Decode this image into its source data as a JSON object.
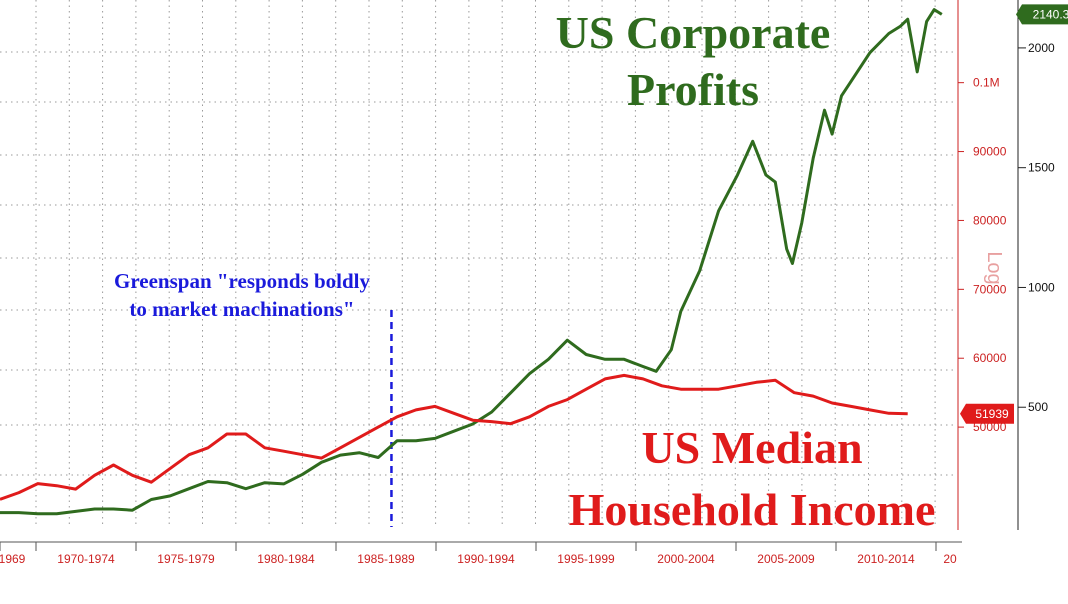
{
  "chart_data": {
    "type": "line",
    "titles": {
      "profits_line1": "US Corporate",
      "profits_line2": "Profits",
      "income_line1": "US Median",
      "income_line2": "Household Income"
    },
    "annotation": {
      "line1": "Greenspan \"responds boldly",
      "line2": "to market machinations\"",
      "x_year": 1987.7,
      "color": "#1a1adb"
    },
    "x_ticks": [
      "1969",
      "1970-1974",
      "1975-1979",
      "1980-1984",
      "1985-1989",
      "1990-1994",
      "1995-1999",
      "2000-2004",
      "2005-2009",
      "2010-2014",
      "20"
    ],
    "xlim": [
      1967,
      2017.5
    ],
    "left_axis": {
      "scale": "linear",
      "ylim": [
        0,
        2200
      ],
      "ticks": [
        2000,
        1500,
        1000,
        500
      ],
      "tick_labels": [
        "2000",
        "1500",
        "1000",
        "500"
      ],
      "color": "#000000"
    },
    "right_axis": {
      "scale": "linear",
      "ylim": [
        35500,
        112000
      ],
      "ticks": [
        100000,
        90000,
        80000,
        70000,
        60000,
        50000
      ],
      "tick_labels": [
        "0.1M",
        "90000",
        "80000",
        "70000",
        "60000",
        "50000"
      ],
      "label": "Log",
      "color": "#cc2222"
    },
    "series": [
      {
        "name": "US Corporate Profits",
        "axis": "left",
        "color": "#2f6b1e",
        "last_value_label": "2140.3",
        "x": [
          1967,
          1968,
          1969,
          1970,
          1971,
          1972,
          1973,
          1974,
          1975,
          1976,
          1977,
          1978,
          1979,
          1980,
          1981,
          1982,
          1983,
          1984,
          1985,
          1986,
          1987,
          1988,
          1989,
          1990,
          1991,
          1992,
          1993,
          1994,
          1995,
          1996,
          1997,
          1998,
          1999,
          2000,
          2001,
          2001.7,
          2002.5,
          2003,
          2004,
          2005,
          2006,
          2006.8,
          2007.5,
          2008,
          2008.6,
          2008.9,
          2009.4,
          2010,
          2010.6,
          2011,
          2011.5,
          2012,
          2013,
          2014,
          2014.6,
          2015,
          2015.5,
          2016,
          2016.4,
          2016.8
        ],
        "values": [
          60,
          60,
          55,
          55,
          65,
          75,
          75,
          70,
          115,
          130,
          160,
          190,
          185,
          160,
          185,
          180,
          220,
          270,
          300,
          310,
          290,
          360,
          360,
          370,
          400,
          430,
          480,
          560,
          640,
          700,
          780,
          720,
          700,
          700,
          670,
          650,
          740,
          900,
          1070,
          1320,
          1470,
          1610,
          1470,
          1440,
          1160,
          1100,
          1270,
          1540,
          1740,
          1640,
          1800,
          1860,
          1980,
          2060,
          2090,
          2120,
          1900,
          2110,
          2160,
          2140
        ]
      },
      {
        "name": "US Median Household Income",
        "axis": "right",
        "color": "#e01b1b",
        "last_value_label": "51939",
        "x": [
          1967,
          1968,
          1969,
          1970,
          1971,
          1972,
          1973,
          1974,
          1975,
          1976,
          1977,
          1978,
          1979,
          1980,
          1981,
          1982,
          1983,
          1984,
          1985,
          1986,
          1987,
          1988,
          1989,
          1990,
          1991,
          1992,
          1993,
          1994,
          1995,
          1996,
          1997,
          1998,
          1999,
          2000,
          2001,
          2002,
          2003,
          2004,
          2005,
          2006,
          2007,
          2008,
          2009,
          2010,
          2011,
          2012,
          2013,
          2014,
          2015
        ],
        "values": [
          39500,
          40500,
          41800,
          41500,
          41000,
          43000,
          44500,
          43000,
          42000,
          44000,
          46000,
          47000,
          49000,
          49000,
          47000,
          46500,
          46000,
          45500,
          47000,
          48500,
          50000,
          51500,
          52500,
          53000,
          52000,
          51000,
          50800,
          50500,
          51500,
          53000,
          54000,
          55500,
          57000,
          57500,
          57000,
          56000,
          55500,
          55500,
          55500,
          56000,
          56500,
          56800,
          55000,
          54500,
          53500,
          53000,
          52500,
          52000,
          51939
        ]
      }
    ],
    "grid": true
  }
}
